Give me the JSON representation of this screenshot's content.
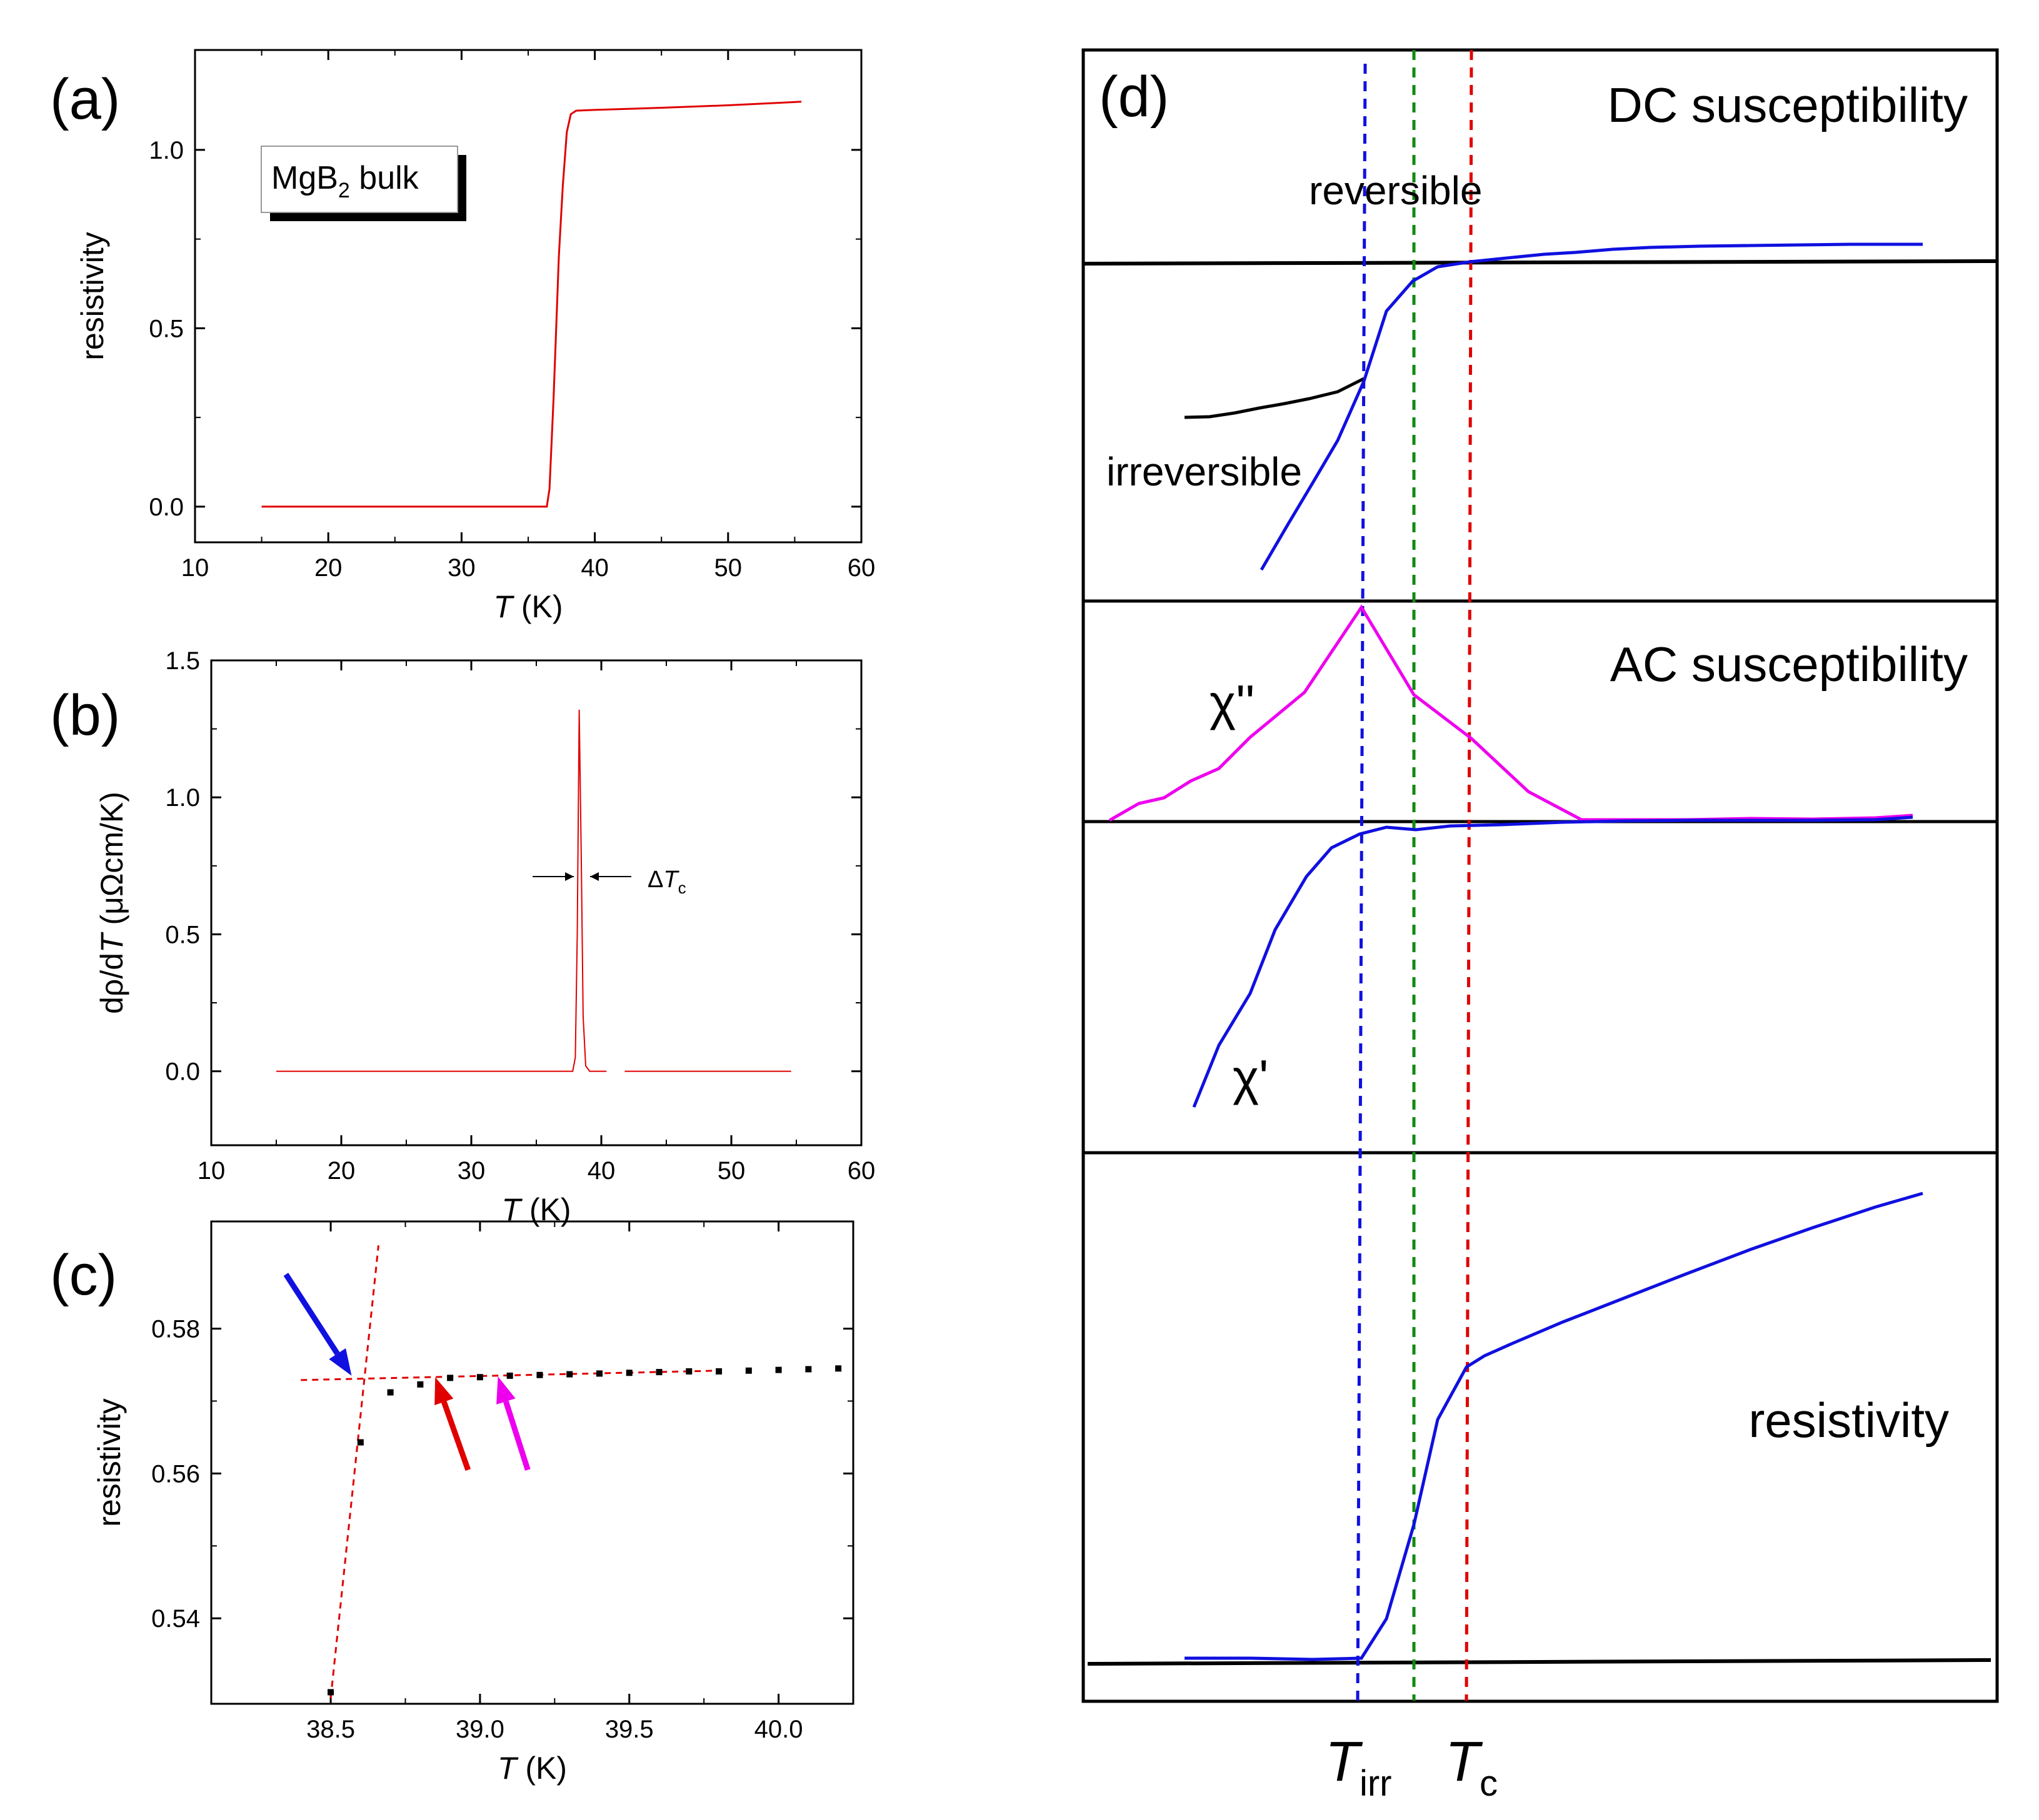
{
  "colors": {
    "red": "#e00000",
    "blue": "#1010e0",
    "green": "#108a10",
    "magenta": "#ee00ee",
    "black": "#000000"
  },
  "chart_data": [
    {
      "id": "a",
      "type": "line",
      "panel_label": "(a)",
      "legend": {
        "main": "MgB",
        "sub": "2",
        "rest": " bulk"
      },
      "xlabel": {
        "italic": "T",
        "rest": " (K)"
      },
      "ylabel": "resistivity",
      "xlim": [
        10,
        60
      ],
      "ylim": [
        -0.1,
        1.28
      ],
      "xticks": [
        10,
        20,
        30,
        40,
        50,
        60
      ],
      "yticks": [
        0.0,
        0.5,
        1.0
      ],
      "ytick_labels": [
        "0.0",
        "0.5",
        "1.0"
      ],
      "series": [
        {
          "name": "resistivity",
          "color": "#e00000",
          "x": [
            15,
            36.4,
            36.6,
            36.9,
            37.1,
            37.3,
            37.6,
            37.9,
            38.2,
            38.6,
            40,
            45,
            50,
            55.5
          ],
          "y": [
            0.0,
            0.0,
            0.05,
            0.3,
            0.5,
            0.7,
            0.9,
            1.05,
            1.1,
            1.11,
            1.112,
            1.118,
            1.125,
            1.135
          ]
        }
      ]
    },
    {
      "id": "b",
      "type": "line",
      "panel_label": "(b)",
      "annotation": {
        "delta": "Δ",
        "italic": "T",
        "sub": "c"
      },
      "xlabel": {
        "italic": "T",
        "rest": " (K)"
      },
      "ylabel": {
        "a": "dρ/d",
        "italic": "T",
        "b": " (μΩcm/K)"
      },
      "xlim": [
        10,
        60
      ],
      "ylim": [
        -0.27,
        1.5
      ],
      "xticks": [
        10,
        20,
        30,
        40,
        50,
        60
      ],
      "yticks": [
        0.0,
        0.5,
        1.0,
        1.5
      ],
      "ytick_labels": [
        "0.0",
        "0.5",
        "1.0",
        "1.5"
      ],
      "series": [
        {
          "name": "dρ/dT",
          "color": "#e00000",
          "x": [
            15,
            37.8,
            38.0,
            38.15,
            38.3,
            38.45,
            38.6,
            38.8,
            39.1,
            40.4
          ],
          "y": [
            0.0,
            0.0,
            0.05,
            0.5,
            1.32,
            0.8,
            0.2,
            0.02,
            0.0,
            0.0
          ]
        },
        {
          "name": "dρ/dT (high T)",
          "color": "#e00000",
          "x": [
            41.8,
            54.6
          ],
          "y": [
            0.0,
            0.0
          ]
        }
      ]
    },
    {
      "id": "c",
      "type": "scatter",
      "panel_label": "(c)",
      "xlabel": {
        "italic": "T",
        "rest": " (K)"
      },
      "ylabel": "resistivity",
      "xlim": [
        38.1,
        40.25
      ],
      "ylim": [
        0.5282,
        0.5948
      ],
      "xticks": [
        38.5,
        39.0,
        39.5,
        40.0
      ],
      "xtick_labels": [
        "38.5",
        "39.0",
        "39.5",
        "40.0"
      ],
      "yticks": [
        0.54,
        0.56,
        0.58
      ],
      "ytick_labels": [
        "0.54",
        "0.56",
        "0.58"
      ],
      "points": {
        "x": [
          38.5,
          38.6,
          38.7,
          38.8,
          38.9,
          39.0,
          39.1,
          39.2,
          39.3,
          39.4,
          39.5,
          39.6,
          39.7,
          39.8,
          39.9,
          40.0,
          40.1,
          40.2
        ],
        "y": [
          0.5298,
          0.5643,
          0.5712,
          0.5723,
          0.5732,
          0.5733,
          0.5735,
          0.5736,
          0.5737,
          0.5738,
          0.5739,
          0.574,
          0.5741,
          0.5741,
          0.5742,
          0.5743,
          0.5744,
          0.5745
        ]
      },
      "fit_lines": [
        {
          "name": "normal-state fit",
          "x": [
            38.4,
            39.8
          ],
          "y": [
            0.5729,
            0.5742
          ]
        },
        {
          "name": "transition fit",
          "x": [
            38.5,
            38.66
          ],
          "y": [
            0.529,
            0.5915
          ]
        }
      ],
      "arrows": [
        {
          "name": "blue",
          "color": "#1010e0",
          "from": [
            38.35,
            0.5875
          ],
          "to": [
            38.57,
            0.5735
          ]
        },
        {
          "name": "red",
          "color": "#e00000",
          "from": [
            38.96,
            0.5605
          ],
          "to": [
            38.85,
            0.5733
          ]
        },
        {
          "name": "magenta",
          "color": "#ee00ee",
          "from": [
            39.16,
            0.5605
          ],
          "to": [
            39.06,
            0.5734
          ]
        }
      ]
    },
    {
      "id": "d",
      "type": "line",
      "panel_label": "(d)",
      "note": "schematic; unitless arbitrary axes",
      "labels": {
        "dc_title": "DC susceptibility",
        "reversible": "reversible",
        "irreversible": "irreversible",
        "ac_title": "AC susceptibility",
        "chi_pp": "χ''",
        "chi_p": "χ'",
        "resistivity": "resistivity",
        "t_irr": {
          "italic": "T",
          "sub": "irr"
        },
        "t_c": {
          "italic": "T",
          "sub": "c"
        }
      },
      "series": [
        {
          "name": "DC susceptibility",
          "color": "#1010e0"
        },
        {
          "name": "DC irreversible branch",
          "color": "#000000"
        },
        {
          "name": "χ''",
          "color": "#ee00ee"
        },
        {
          "name": "χ'",
          "color": "#1010e0"
        },
        {
          "name": "resistivity",
          "color": "#1010e0"
        }
      ],
      "markers": [
        {
          "name": "T_irr",
          "color": "#1010e0",
          "style": "dashed"
        },
        {
          "name": "middle",
          "color": "#108a10",
          "style": "dashed"
        },
        {
          "name": "T_c",
          "color": "#e00000",
          "style": "dashed"
        }
      ]
    }
  ]
}
